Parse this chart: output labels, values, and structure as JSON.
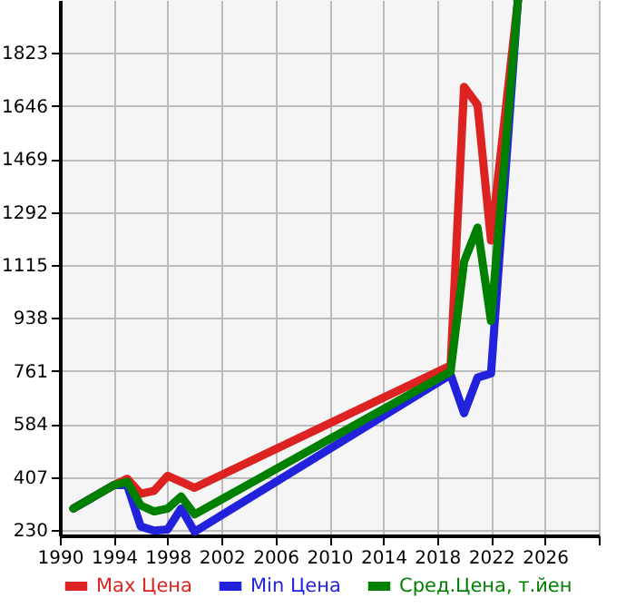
{
  "chart_data": {
    "type": "line",
    "x": [
      1991,
      1994,
      1995,
      1996,
      1997,
      1998,
      1999,
      2000,
      2019,
      2020,
      2021,
      2022,
      2024
    ],
    "series": [
      {
        "name": "Max Цена",
        "color": "#dd2222",
        "values": [
          302,
          380,
          401,
          351,
          361,
          411,
          391,
          371,
          779,
          1710,
          1650,
          1197,
          2000
        ]
      },
      {
        "name": "Min Цена",
        "color": "#2222dd",
        "values": [
          302,
          380,
          380,
          242,
          228,
          232,
          302,
          224,
          749,
          620,
          739,
          753,
          2000
        ]
      },
      {
        "name": "Сред.Цена, т.йен",
        "color": "#008000",
        "values": [
          302,
          380,
          391,
          312,
          292,
          302,
          342,
          282,
          759,
          1126,
          1240,
          928,
          2000
        ]
      }
    ],
    "xlim": [
      1990,
      2030
    ],
    "xticks": [
      1990,
      1994,
      1998,
      2002,
      2006,
      2010,
      2014,
      2018,
      2022,
      2026,
      {
        "value": 2030,
        "label": null
      }
    ],
    "ylim": [
      212,
      2000
    ],
    "yticks": [
      230,
      407,
      584,
      761,
      938,
      1115,
      1292,
      1469,
      1646,
      1823
    ],
    "grid": true,
    "legend": "bottom",
    "line_style": "solid"
  }
}
